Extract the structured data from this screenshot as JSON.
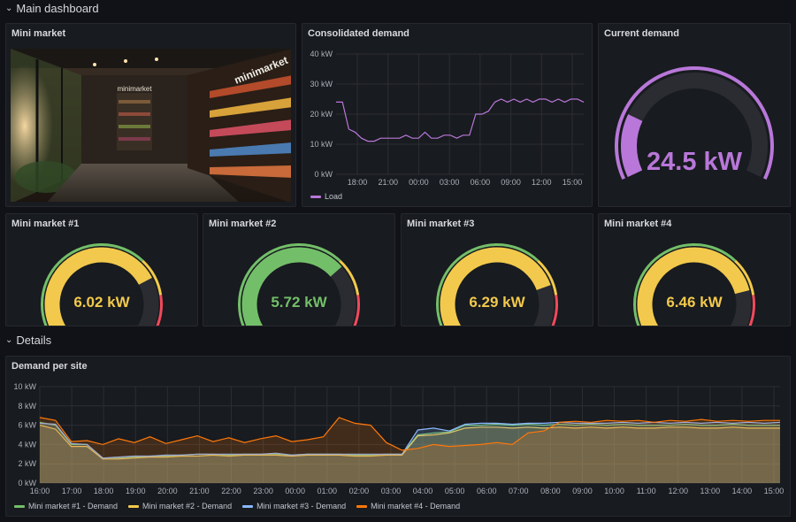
{
  "rows": {
    "main": {
      "title": "Main dashboard"
    },
    "details": {
      "title": "Details"
    }
  },
  "panels": {
    "image": {
      "title": "Mini market",
      "sign_text": "minimarket",
      "wall_sign": "minimarket"
    },
    "consolidated": {
      "title": "Consolidated demand"
    },
    "current": {
      "title": "Current demand",
      "value": "24.5 kW",
      "fraction": 0.22,
      "color": "#b877d9"
    },
    "gauges": [
      {
        "title": "Mini market #1",
        "value": "6.02 kW",
        "fraction": 0.73,
        "color": "#f2c94c"
      },
      {
        "title": "Mini market #2",
        "value": "5.72 kW",
        "fraction": 0.68,
        "color": "#73bf69"
      },
      {
        "title": "Mini market #3",
        "value": "6.29 kW",
        "fraction": 0.76,
        "color": "#f2c94c"
      },
      {
        "title": "Mini market #4",
        "value": "6.46 kW",
        "fraction": 0.78,
        "color": "#f2c94c"
      }
    ],
    "per_site": {
      "title": "Demand per site"
    }
  },
  "chart_data": [
    {
      "type": "line",
      "title": "Consolidated demand",
      "y_ticks": [
        "40 kW",
        "30 kW",
        "20 kW",
        "10 kW",
        "0 kW"
      ],
      "ylim": [
        0,
        40
      ],
      "x_ticks": [
        "18:00",
        "21:00",
        "00:00",
        "03:00",
        "06:00",
        "09:00",
        "12:00",
        "15:00"
      ],
      "series": [
        {
          "name": "Load",
          "color": "#b877d9",
          "values": [
            24,
            24,
            15,
            14,
            12,
            11,
            11,
            12,
            12,
            12,
            12,
            13,
            12,
            12,
            14,
            12,
            12,
            13,
            13,
            12,
            13,
            13,
            20,
            20,
            21,
            24,
            25,
            24,
            25,
            24,
            25,
            24,
            25,
            25,
            24,
            25,
            24,
            25,
            25,
            24
          ]
        }
      ]
    },
    {
      "type": "area",
      "title": "Demand per site",
      "y_ticks": [
        "10 kW",
        "8 kW",
        "6 kW",
        "4 kW",
        "2 kW",
        "0 kW"
      ],
      "ylim": [
        0,
        10
      ],
      "x_ticks": [
        "16:00",
        "17:00",
        "18:00",
        "19:00",
        "20:00",
        "21:00",
        "22:00",
        "23:00",
        "00:00",
        "01:00",
        "02:00",
        "03:00",
        "04:00",
        "05:00",
        "06:00",
        "07:00",
        "08:00",
        "09:00",
        "10:00",
        "11:00",
        "12:00",
        "13:00",
        "14:00",
        "15:00"
      ],
      "series": [
        {
          "name": "Mini market #1 - Demand",
          "color": "#73bf69",
          "values": [
            6.3,
            6.0,
            4.0,
            4.0,
            2.6,
            2.6,
            2.7,
            2.8,
            2.8,
            2.9,
            3.0,
            3.0,
            2.9,
            3.0,
            3.0,
            3.0,
            2.9,
            3.0,
            3.0,
            3.0,
            2.9,
            2.9,
            3.0,
            3.0,
            5.0,
            5.2,
            5.3,
            6.0,
            6.0,
            6.1,
            6.0,
            6.1,
            6.0,
            6.1,
            6.0,
            6.1,
            6.0,
            6.1,
            6.0,
            6.0,
            6.0,
            6.1,
            6.0,
            6.0,
            6.1,
            6.0,
            6.0,
            6.0
          ]
        },
        {
          "name": "Mini market #2 - Demand",
          "color": "#f2c94c",
          "values": [
            6.0,
            5.6,
            3.8,
            3.8,
            2.5,
            2.5,
            2.6,
            2.7,
            2.7,
            2.8,
            2.8,
            2.9,
            2.8,
            2.9,
            2.9,
            2.9,
            2.8,
            2.9,
            2.9,
            2.9,
            2.8,
            2.8,
            2.9,
            2.9,
            4.9,
            5.0,
            5.2,
            5.7,
            5.8,
            5.8,
            5.7,
            5.8,
            5.7,
            5.8,
            5.7,
            5.8,
            5.7,
            5.8,
            5.7,
            5.7,
            5.8,
            5.8,
            5.7,
            5.7,
            5.8,
            5.7,
            5.7,
            5.7
          ]
        },
        {
          "name": "Mini market #3 - Demand",
          "color": "#8ab8ff",
          "values": [
            6.2,
            6.1,
            4.1,
            4.0,
            2.6,
            2.7,
            2.8,
            2.8,
            2.9,
            2.9,
            3.0,
            3.0,
            3.0,
            3.0,
            3.0,
            3.1,
            2.9,
            3.0,
            3.0,
            3.0,
            3.0,
            3.0,
            3.0,
            3.0,
            5.5,
            5.7,
            5.4,
            6.1,
            6.2,
            6.2,
            6.1,
            6.2,
            6.2,
            6.3,
            6.2,
            6.2,
            6.2,
            6.3,
            6.2,
            6.3,
            6.2,
            6.3,
            6.2,
            6.3,
            6.2,
            6.3,
            6.2,
            6.3
          ]
        },
        {
          "name": "Mini market #4 - Demand",
          "color": "#ff780a",
          "values": [
            6.8,
            6.5,
            4.3,
            4.4,
            4.0,
            4.6,
            4.2,
            4.8,
            4.1,
            4.5,
            4.9,
            4.3,
            4.7,
            4.2,
            4.6,
            4.9,
            4.3,
            4.5,
            4.8,
            6.8,
            6.2,
            6.0,
            4.2,
            3.4,
            3.6,
            4.0,
            3.8,
            3.9,
            4.0,
            4.2,
            4.0,
            5.2,
            5.4,
            6.3,
            6.4,
            6.3,
            6.5,
            6.4,
            6.5,
            6.3,
            6.5,
            6.4,
            6.6,
            6.4,
            6.5,
            6.4,
            6.5,
            6.5
          ]
        }
      ]
    }
  ]
}
